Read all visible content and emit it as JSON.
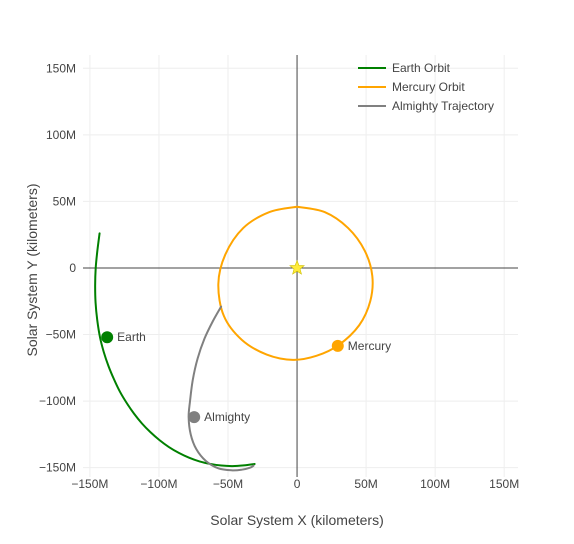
{
  "chart_data": {
    "type": "line",
    "title": "",
    "xlabel": "Solar System X (kilometers)",
    "ylabel": "Solar System Y (kilometers)",
    "xlim": [
      -155000000,
      160000000
    ],
    "ylim": [
      -157000000,
      160000000
    ],
    "grid": true,
    "zero_lines": true,
    "legend_position": "top-right",
    "x_ticks": [
      {
        "value": -150000000,
        "label": "−150M"
      },
      {
        "value": -100000000,
        "label": "−100M"
      },
      {
        "value": -50000000,
        "label": "−50M"
      },
      {
        "value": 0,
        "label": "0"
      },
      {
        "value": 50000000,
        "label": "50M"
      },
      {
        "value": 100000000,
        "label": "100M"
      },
      {
        "value": 150000000,
        "label": "150M"
      }
    ],
    "y_ticks": [
      {
        "value": -150000000,
        "label": "−150M"
      },
      {
        "value": -100000000,
        "label": "−100M"
      },
      {
        "value": -50000000,
        "label": "−50M"
      },
      {
        "value": 0,
        "label": "0"
      },
      {
        "value": 50000000,
        "label": "50M"
      },
      {
        "value": 100000000,
        "label": "100M"
      },
      {
        "value": 150000000,
        "label": "150M"
      }
    ],
    "series": [
      {
        "name": "Earth Orbit",
        "color": "#008000",
        "x": [
          -143000000,
          -144600000,
          -145800000,
          -146200000,
          -145900000,
          -144700000,
          -142700000,
          -140000000,
          -136600000,
          -132600000,
          -128200000,
          -123300000,
          -118000000,
          -112300000,
          -106100000,
          -99600000,
          -92800000,
          -85600000,
          -78200000,
          -70600000,
          -62700000,
          -54800000,
          -46700000,
          -38600000,
          -30700000
        ],
        "y": [
          26000000,
          13000000,
          0,
          -13000000,
          -26000000,
          -39000000,
          -52000000,
          -63000000,
          -73500000,
          -83500000,
          -93000000,
          -101500000,
          -109500000,
          -116800000,
          -123400000,
          -129300000,
          -134500000,
          -138900000,
          -142500000,
          -145300000,
          -147200000,
          -148400000,
          -148800000,
          -148300000,
          -147200000
        ]
      },
      {
        "name": "Mercury Orbit",
        "color": "#FFA500",
        "x": [
          0,
          20000000,
          37000000,
          49000000,
          54500000,
          53000000,
          45000000,
          30000000,
          14000000,
          -3000000,
          -22000000,
          -40000000,
          -53000000,
          -57000000,
          -52000000,
          -39000000,
          -20000000,
          0
        ],
        "y": [
          46000000,
          42000000,
          30000000,
          13000000,
          -6000000,
          -25000000,
          -43000000,
          -58000000,
          -66000000,
          -69000000,
          -65000000,
          -54000000,
          -36000000,
          -12000000,
          10000000,
          30000000,
          42000000,
          46000000
        ]
      },
      {
        "name": "Almighty Trajectory",
        "color": "#808080",
        "x": [
          -55000000,
          -61000000,
          -67000000,
          -72000000,
          -75500000,
          -77500000,
          -78500000,
          -77000000,
          -73000000,
          -66000000,
          -57000000,
          -47000000,
          -40000000,
          -34000000,
          -31500000
        ],
        "y": [
          -29000000,
          -40000000,
          -53000000,
          -68000000,
          -84000000,
          -100000000,
          -112000000,
          -125000000,
          -136000000,
          -145000000,
          -150500000,
          -152000000,
          -151500000,
          -150000000,
          -148500000
        ]
      }
    ],
    "markers": [
      {
        "name": "Earth",
        "x": -137500000,
        "y": -52000000,
        "color": "#008000"
      },
      {
        "name": "Mercury",
        "x": 29500000,
        "y": -58500000,
        "color": "#FFA500"
      },
      {
        "name": "Almighty",
        "x": -74500000,
        "y": -112000000,
        "color": "#808080"
      }
    ],
    "sun": {
      "x": 0,
      "y": 0,
      "color": "#FFEB3B"
    }
  }
}
